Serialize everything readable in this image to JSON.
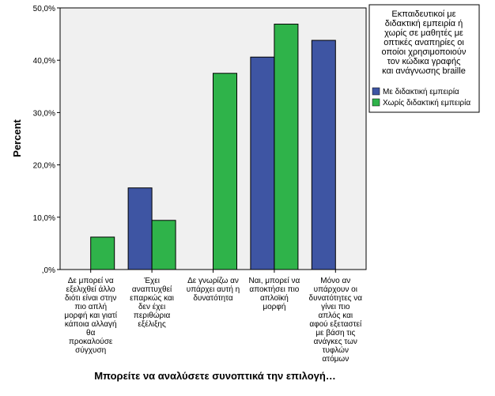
{
  "chart_data": {
    "type": "bar",
    "xlabel": "Μπορείτε να αναλύσετε συνοπτικά την επιλογή…",
    "ylabel": "Percent",
    "ylim": [
      0,
      50
    ],
    "yticks": [
      {
        "value": 0,
        "label": ",0%"
      },
      {
        "value": 10,
        "label": "10,0%"
      },
      {
        "value": 20,
        "label": "20,0%"
      },
      {
        "value": 30,
        "label": "30,0%"
      },
      {
        "value": 40,
        "label": "40,0%"
      },
      {
        "value": 50,
        "label": "50,0%"
      }
    ],
    "grid": false,
    "categories": [
      [
        "Δε μπορεί να",
        "εξελιχθεί άλλο",
        "διότι είναι στην",
        "πιο απλή",
        "μορφή και γιατί",
        "κάποια αλλαγή",
        "θα",
        "προκαλούσε",
        "σύγχυση"
      ],
      [
        "Έχει",
        "αναπτυχθεί",
        "επαρκώς και",
        "δεν έχει",
        "περιθώρια",
        "εξέλιξης"
      ],
      [
        "Δε γνωρίζω αν",
        "υπάρχει αυτή η",
        "δυνατότητα"
      ],
      [
        "Ναι, μπορεί να",
        "αποκτήσει πιο",
        "απλοϊκή",
        "μορφή"
      ],
      [
        "Μόνο αν",
        "υπάρχουν οι",
        "δυνατότητες να",
        "γίνει πιο",
        "απλός και",
        "αφού εξεταστεί",
        "με βάση τις",
        "ανάγκες των",
        "τυφλών",
        "ατόμων"
      ]
    ],
    "legend": {
      "title": [
        "Εκπαιδευτικοί με",
        "διδακτική εμπειρία ή",
        "χωρίς σε μαθητές με",
        "οπτικές αναπηρίες οι",
        "οποίοι χρησιμοποιούν",
        "τον κώδικα γραφής",
        "και ανάγνωσης braille"
      ],
      "placement": "right"
    },
    "series": [
      {
        "name": "Με διδακτική εμπειρία",
        "color": "#3e55a3",
        "values": [
          null,
          15.6,
          null,
          40.6,
          43.8
        ]
      },
      {
        "name": "Χωρίς διδακτική εμπειρία",
        "color": "#2fb34a",
        "values": [
          6.2,
          9.4,
          37.5,
          46.9,
          null
        ]
      }
    ]
  }
}
